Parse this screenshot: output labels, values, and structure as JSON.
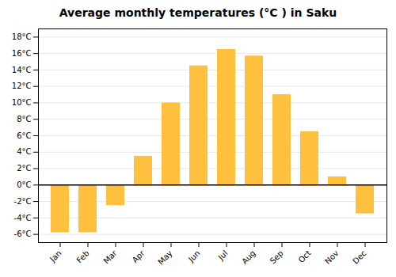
{
  "chart_data": {
    "type": "bar",
    "title": "Average monthly temperatures (°C ) in Saku",
    "categories": [
      "Jan",
      "Feb",
      "Mar",
      "Apr",
      "May",
      "Jun",
      "Jul",
      "Aug",
      "Sep",
      "Oct",
      "Nov",
      "Dec"
    ],
    "values": [
      -5.8,
      -5.8,
      -2.5,
      3.5,
      10.0,
      14.5,
      16.5,
      15.7,
      11.0,
      6.5,
      1.0,
      -3.5
    ],
    "color": "#FFC040",
    "ylim": [
      -7,
      19
    ],
    "yticks": [
      {
        "value": -6,
        "label": "-6°C"
      },
      {
        "value": -4,
        "label": "-4°C"
      },
      {
        "value": -2,
        "label": "-2°C"
      },
      {
        "value": 0,
        "label": "0°C"
      },
      {
        "value": 2,
        "label": "2°C"
      },
      {
        "value": 4,
        "label": "4°C"
      },
      {
        "value": 6,
        "label": "6°C"
      },
      {
        "value": 8,
        "label": "8°C"
      },
      {
        "value": 10,
        "label": "10°C"
      },
      {
        "value": 12,
        "label": "12°C"
      },
      {
        "value": 14,
        "label": "14°C"
      },
      {
        "value": 16,
        "label": "16°C"
      },
      {
        "value": 18,
        "label": "18°C"
      }
    ],
    "grid": true
  }
}
